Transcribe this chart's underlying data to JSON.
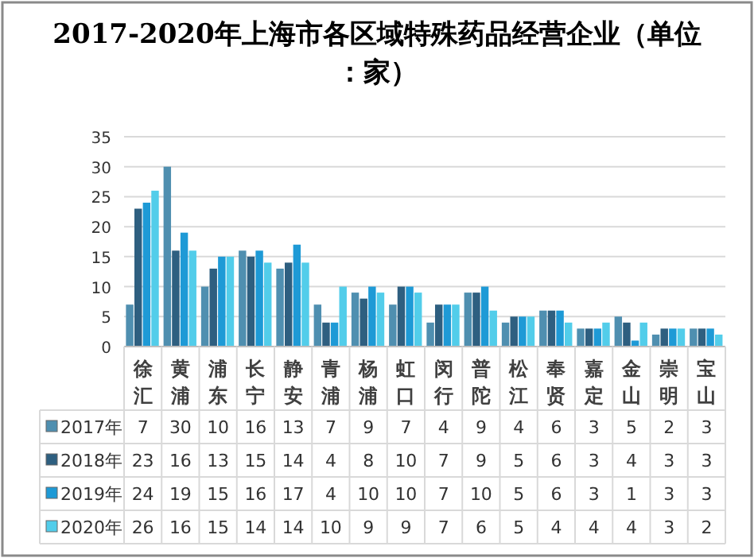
{
  "chart_data": {
    "type": "bar",
    "title": "2017-2020年上海市各区域特殊药品经营企业（单位：家）",
    "categories": [
      "徐汇",
      "黄浦",
      "浦东",
      "长宁",
      "静安",
      "青浦",
      "杨浦",
      "虹口",
      "闵行",
      "普陀",
      "松江",
      "奉贤",
      "嘉定",
      "金山",
      "崇明",
      "宝山"
    ],
    "series": [
      {
        "name": "2017年",
        "color": "#4f8fb0",
        "values": [
          7,
          30,
          10,
          16,
          13,
          7,
          9,
          7,
          4,
          9,
          4,
          6,
          3,
          5,
          2,
          3
        ]
      },
      {
        "name": "2018年",
        "color": "#2e5f80",
        "values": [
          23,
          16,
          13,
          15,
          14,
          4,
          8,
          10,
          7,
          9,
          5,
          6,
          3,
          4,
          3,
          3
        ]
      },
      {
        "name": "2019年",
        "color": "#1e9ad6",
        "values": [
          24,
          19,
          15,
          16,
          17,
          4,
          10,
          10,
          7,
          10,
          5,
          6,
          3,
          1,
          3,
          3
        ]
      },
      {
        "name": "2020年",
        "color": "#52cdea",
        "values": [
          26,
          16,
          15,
          14,
          14,
          10,
          9,
          9,
          7,
          6,
          5,
          4,
          4,
          4,
          3,
          2
        ]
      }
    ],
    "ylim": [
      0,
      35
    ],
    "yticks": [
      0,
      5,
      10,
      15,
      20,
      25,
      30,
      35
    ],
    "grid": "y",
    "data_labels": true,
    "legend": "bottom"
  }
}
